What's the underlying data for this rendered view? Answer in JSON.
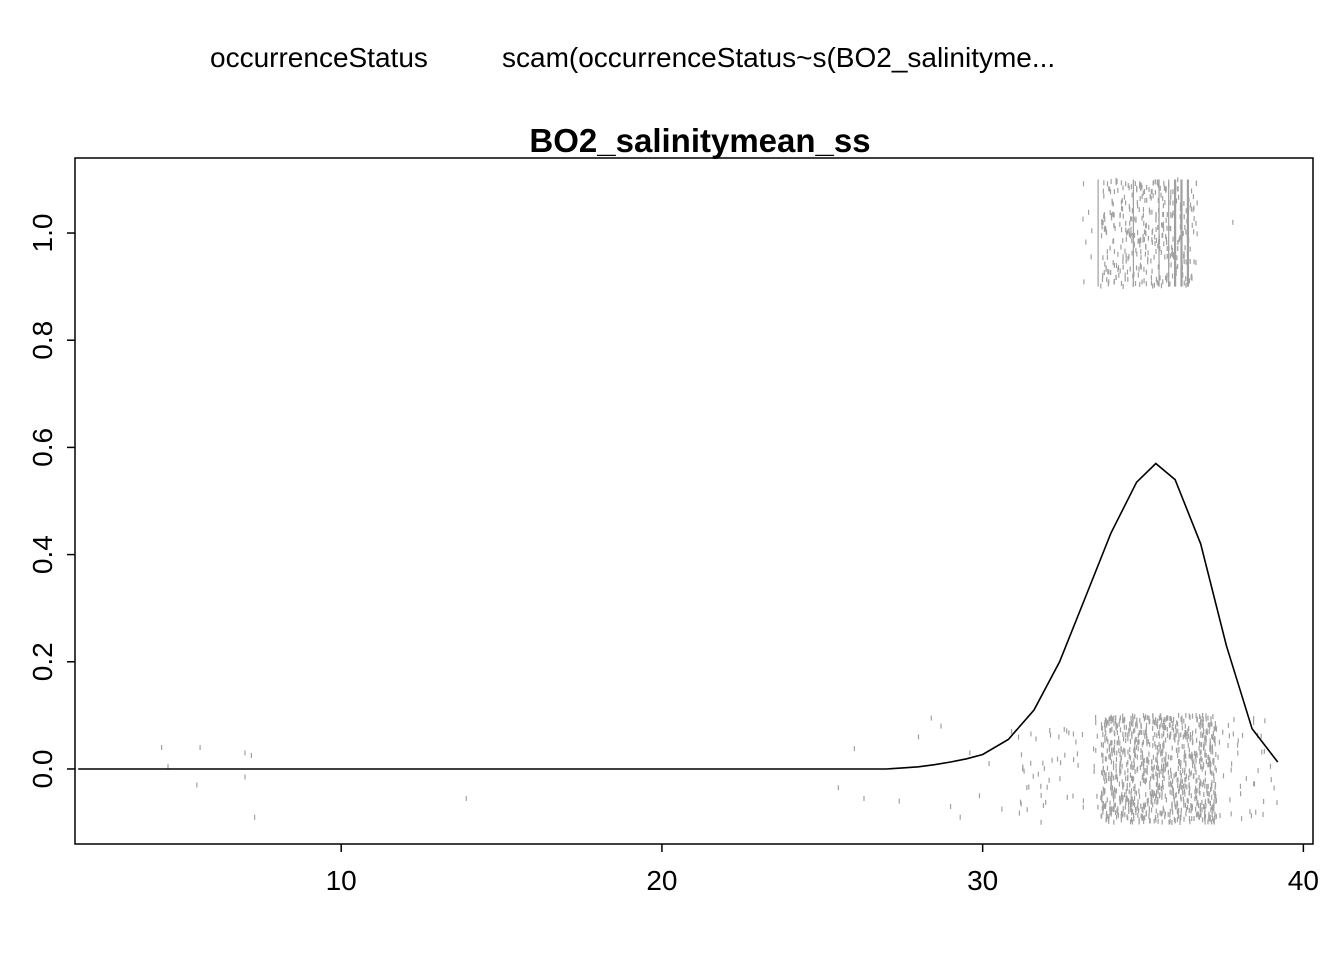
{
  "header": {
    "response_label": "occurrenceStatus",
    "model_label": "scam(occurrenceStatus~s(BO2_salinityme..."
  },
  "chart_data": {
    "type": "line",
    "title": "BO2_salinitymean_ss",
    "xlabel": "",
    "ylabel": "",
    "xlim": [
      1.7,
      40.3
    ],
    "ylim": [
      -0.14,
      1.14
    ],
    "x_ticks": [
      10,
      20,
      30,
      40
    ],
    "y_ticks": [
      0.0,
      0.2,
      0.4,
      0.6,
      0.8,
      1.0
    ],
    "x_tick_labels": [
      "10",
      "20",
      "30",
      "40"
    ],
    "y_tick_labels": [
      "0.0",
      "0.2",
      "0.4",
      "0.6",
      "0.8",
      "1.0"
    ],
    "grid": false,
    "legend": "none",
    "series": [
      {
        "type": "line",
        "color": "#000000",
        "x": [
          1.8,
          26.0,
          27.0,
          27.5,
          28.0,
          28.5,
          29.0,
          29.5,
          30.0,
          30.8,
          31.6,
          32.4,
          33.2,
          34.0,
          34.8,
          35.4,
          36.0,
          36.8,
          37.6,
          38.4,
          39.2
        ],
        "y": [
          0.0,
          0.0,
          0.0,
          0.002,
          0.004,
          0.008,
          0.013,
          0.019,
          0.027,
          0.055,
          0.11,
          0.2,
          0.32,
          0.44,
          0.535,
          0.57,
          0.54,
          0.42,
          0.23,
          0.075,
          0.013
        ]
      }
    ],
    "rug_points": {
      "color": "#a0a0a0",
      "description_groups": [
        {
          "y": 1,
          "x_range": [
            33.1,
            36.8
          ],
          "dense_range": [
            33.7,
            36.7
          ],
          "count": 400
        },
        {
          "y": 0,
          "x_range": [
            31.0,
            39.2
          ],
          "dense_range": [
            33.7,
            37.3
          ],
          "count": 1100
        }
      ],
      "sparse_points": [
        [
          4.4,
          0.04
        ],
        [
          4.6,
          0.005
        ],
        [
          5.6,
          0.04
        ],
        [
          5.5,
          -0.03
        ],
        [
          7.0,
          0.03
        ],
        [
          7.2,
          0.025
        ],
        [
          7.0,
          -0.015
        ],
        [
          7.3,
          -0.09
        ],
        [
          13.9,
          -0.055
        ],
        [
          25.5,
          -0.035
        ],
        [
          26.0,
          0.038
        ],
        [
          26.3,
          -0.055
        ],
        [
          27.4,
          -0.06
        ],
        [
          28.0,
          0.06
        ],
        [
          28.4,
          0.095
        ],
        [
          28.7,
          0.08
        ],
        [
          29.0,
          -0.07
        ],
        [
          29.3,
          -0.09
        ],
        [
          29.6,
          0.03
        ],
        [
          29.9,
          -0.05
        ],
        [
          30.2,
          0.01
        ],
        [
          30.6,
          -0.075
        ],
        [
          30.9,
          0.07
        ],
        [
          37.8,
          1.02
        ],
        [
          38.8,
          0.09
        ],
        [
          39.0,
          -0.02
        ]
      ]
    }
  }
}
